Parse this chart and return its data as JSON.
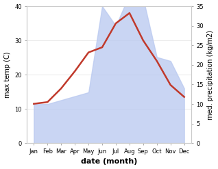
{
  "months": [
    "Jan",
    "Feb",
    "Mar",
    "Apr",
    "May",
    "Jun",
    "Jul",
    "Aug",
    "Sep",
    "Oct",
    "Nov",
    "Dec"
  ],
  "temp": [
    11.5,
    12.0,
    16.0,
    21.0,
    26.5,
    28.0,
    35.0,
    38.0,
    30.0,
    24.0,
    17.0,
    13.5
  ],
  "precip": [
    10.0,
    10.0,
    11.0,
    12.0,
    13.0,
    35.0,
    30.0,
    38.0,
    37.0,
    22.0,
    21.0,
    14.0
  ],
  "temp_color": "#c0392b",
  "precip_color": "#b8c8f0",
  "precip_alpha": 0.75,
  "temp_ylim": [
    0,
    40
  ],
  "precip_ylim": [
    0,
    35
  ],
  "temp_yticks": [
    0,
    10,
    20,
    30,
    40
  ],
  "precip_yticks": [
    0,
    5,
    10,
    15,
    20,
    25,
    30,
    35
  ],
  "xlabel": "date (month)",
  "ylabel_left": "max temp (C)",
  "ylabel_right": "med. precipitation (kg/m2)",
  "bg_color": "#ffffff",
  "grid_color": "#e0e0e0",
  "tick_label_size": 6,
  "axis_label_size": 7,
  "xlabel_size": 8
}
